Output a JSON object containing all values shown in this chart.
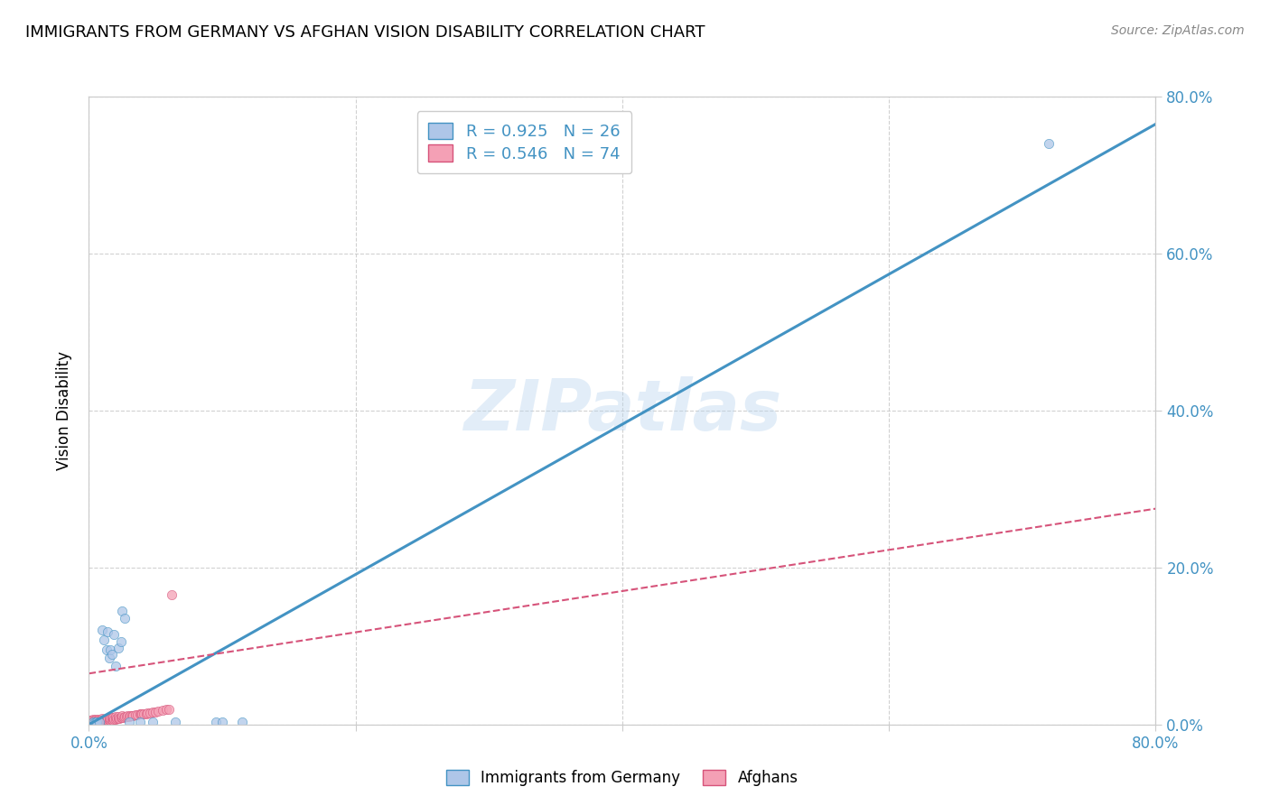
{
  "title": "IMMIGRANTS FROM GERMANY VS AFGHAN VISION DISABILITY CORRELATION CHART",
  "source": "Source: ZipAtlas.com",
  "ylabel": "Vision Disability",
  "watermark": "ZIPatlas",
  "xlim": [
    0,
    0.8
  ],
  "ylim": [
    0,
    0.8
  ],
  "xticks": [
    0.0,
    0.2,
    0.4,
    0.6,
    0.8
  ],
  "yticks": [
    0.0,
    0.2,
    0.4,
    0.6,
    0.8
  ],
  "legend_label1": "R = 0.925   N = 26",
  "legend_label2": "R = 0.546   N = 74",
  "legend_bottom_label1": "Immigrants from Germany",
  "legend_bottom_label2": "Afghans",
  "blue_color": "#aec6e8",
  "blue_color_line": "#4393c3",
  "pink_color": "#f4a0b5",
  "pink_color_line": "#d6537a",
  "germany_x": [
    0.003,
    0.004,
    0.005,
    0.006,
    0.008,
    0.01,
    0.011,
    0.013,
    0.014,
    0.015,
    0.016,
    0.017,
    0.019,
    0.02,
    0.022,
    0.024,
    0.025,
    0.027,
    0.03,
    0.038,
    0.048,
    0.065,
    0.095,
    0.1,
    0.115,
    0.72
  ],
  "germany_y": [
    0.003,
    0.002,
    0.003,
    0.003,
    0.003,
    0.12,
    0.108,
    0.095,
    0.118,
    0.085,
    0.095,
    0.09,
    0.115,
    0.075,
    0.098,
    0.105,
    0.145,
    0.135,
    0.003,
    0.003,
    0.003,
    0.003,
    0.003,
    0.003,
    0.003,
    0.74
  ],
  "afghan_x": [
    0.001,
    0.001,
    0.002,
    0.002,
    0.003,
    0.003,
    0.003,
    0.004,
    0.004,
    0.005,
    0.005,
    0.005,
    0.006,
    0.006,
    0.007,
    0.007,
    0.007,
    0.008,
    0.008,
    0.009,
    0.009,
    0.01,
    0.01,
    0.01,
    0.011,
    0.011,
    0.012,
    0.012,
    0.013,
    0.013,
    0.014,
    0.014,
    0.015,
    0.015,
    0.016,
    0.016,
    0.017,
    0.017,
    0.018,
    0.018,
    0.019,
    0.02,
    0.02,
    0.021,
    0.022,
    0.022,
    0.023,
    0.024,
    0.025,
    0.025,
    0.026,
    0.027,
    0.028,
    0.029,
    0.03,
    0.031,
    0.032,
    0.033,
    0.035,
    0.036,
    0.038,
    0.039,
    0.04,
    0.041,
    0.043,
    0.044,
    0.046,
    0.048,
    0.05,
    0.052,
    0.055,
    0.058,
    0.06,
    0.062
  ],
  "afghan_y": [
    0.003,
    0.005,
    0.003,
    0.006,
    0.002,
    0.004,
    0.007,
    0.003,
    0.005,
    0.003,
    0.005,
    0.007,
    0.003,
    0.006,
    0.003,
    0.005,
    0.007,
    0.004,
    0.006,
    0.004,
    0.006,
    0.004,
    0.006,
    0.008,
    0.004,
    0.007,
    0.005,
    0.007,
    0.005,
    0.007,
    0.005,
    0.008,
    0.005,
    0.008,
    0.006,
    0.008,
    0.006,
    0.009,
    0.006,
    0.009,
    0.007,
    0.007,
    0.01,
    0.008,
    0.008,
    0.01,
    0.008,
    0.009,
    0.009,
    0.011,
    0.009,
    0.01,
    0.01,
    0.011,
    0.01,
    0.011,
    0.011,
    0.011,
    0.012,
    0.012,
    0.013,
    0.013,
    0.013,
    0.014,
    0.014,
    0.015,
    0.015,
    0.016,
    0.016,
    0.017,
    0.018,
    0.019,
    0.019,
    0.165
  ],
  "blue_line_x": [
    0.0,
    0.8
  ],
  "blue_line_y": [
    0.0,
    0.765
  ],
  "pink_line_x": [
    0.0,
    0.8
  ],
  "pink_line_y": [
    0.065,
    0.275
  ],
  "background_color": "#ffffff",
  "grid_color": "#cccccc",
  "tick_label_color": "#4393c3"
}
